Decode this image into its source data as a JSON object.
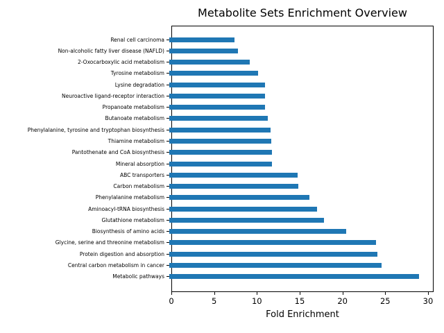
{
  "page": {
    "background": "#ffffff",
    "text_color": "#000000"
  },
  "chart_data": {
    "type": "bar",
    "orientation": "horizontal",
    "title": "Metabolite Sets Enrichment Overview",
    "xlabel": "Fold Enrichment",
    "ylabel": "",
    "bar_color": "#1f77b4",
    "grid": false,
    "legend": "none",
    "xlim": [
      0,
      30.65
    ],
    "x_ticks": [
      0,
      5,
      10,
      15,
      20,
      25,
      30
    ],
    "categories": [
      "Renal cell carcinoma",
      "Non-alcoholic fatty liver disease (NAFLD)",
      "2-Oxocarboxylic acid metabolism",
      "Tyrosine metabolism",
      "Lysine degradation",
      "Neuroactive ligand-receptor interaction",
      "Propanoate metabolism",
      "Butanoate metabolism",
      "Phenylalanine, tyrosine and tryptophan biosynthesis",
      "Thiamine metabolism",
      "Pantothenate and CoA biosynthesis",
      "Mineral absorption",
      "ABC transporters",
      "Carbon metabolism",
      "Phenylalanine metabolism",
      "Aminoacyl-tRNA biosynthesis",
      "Glutathione metabolism",
      "Biosynthesis of amino acids",
      "Glycine, serine and threonine metabolism",
      "Protein digestion and absorption",
      "Central carbon metabolism in cancer",
      "Metabolic pathways"
    ],
    "values": [
      7.6,
      8.0,
      9.4,
      10.4,
      11.2,
      11.2,
      11.2,
      11.5,
      11.8,
      11.9,
      12.0,
      12.0,
      15.0,
      15.1,
      16.4,
      17.3,
      18.1,
      20.7,
      24.2,
      24.3,
      24.8,
      29.2
    ]
  }
}
